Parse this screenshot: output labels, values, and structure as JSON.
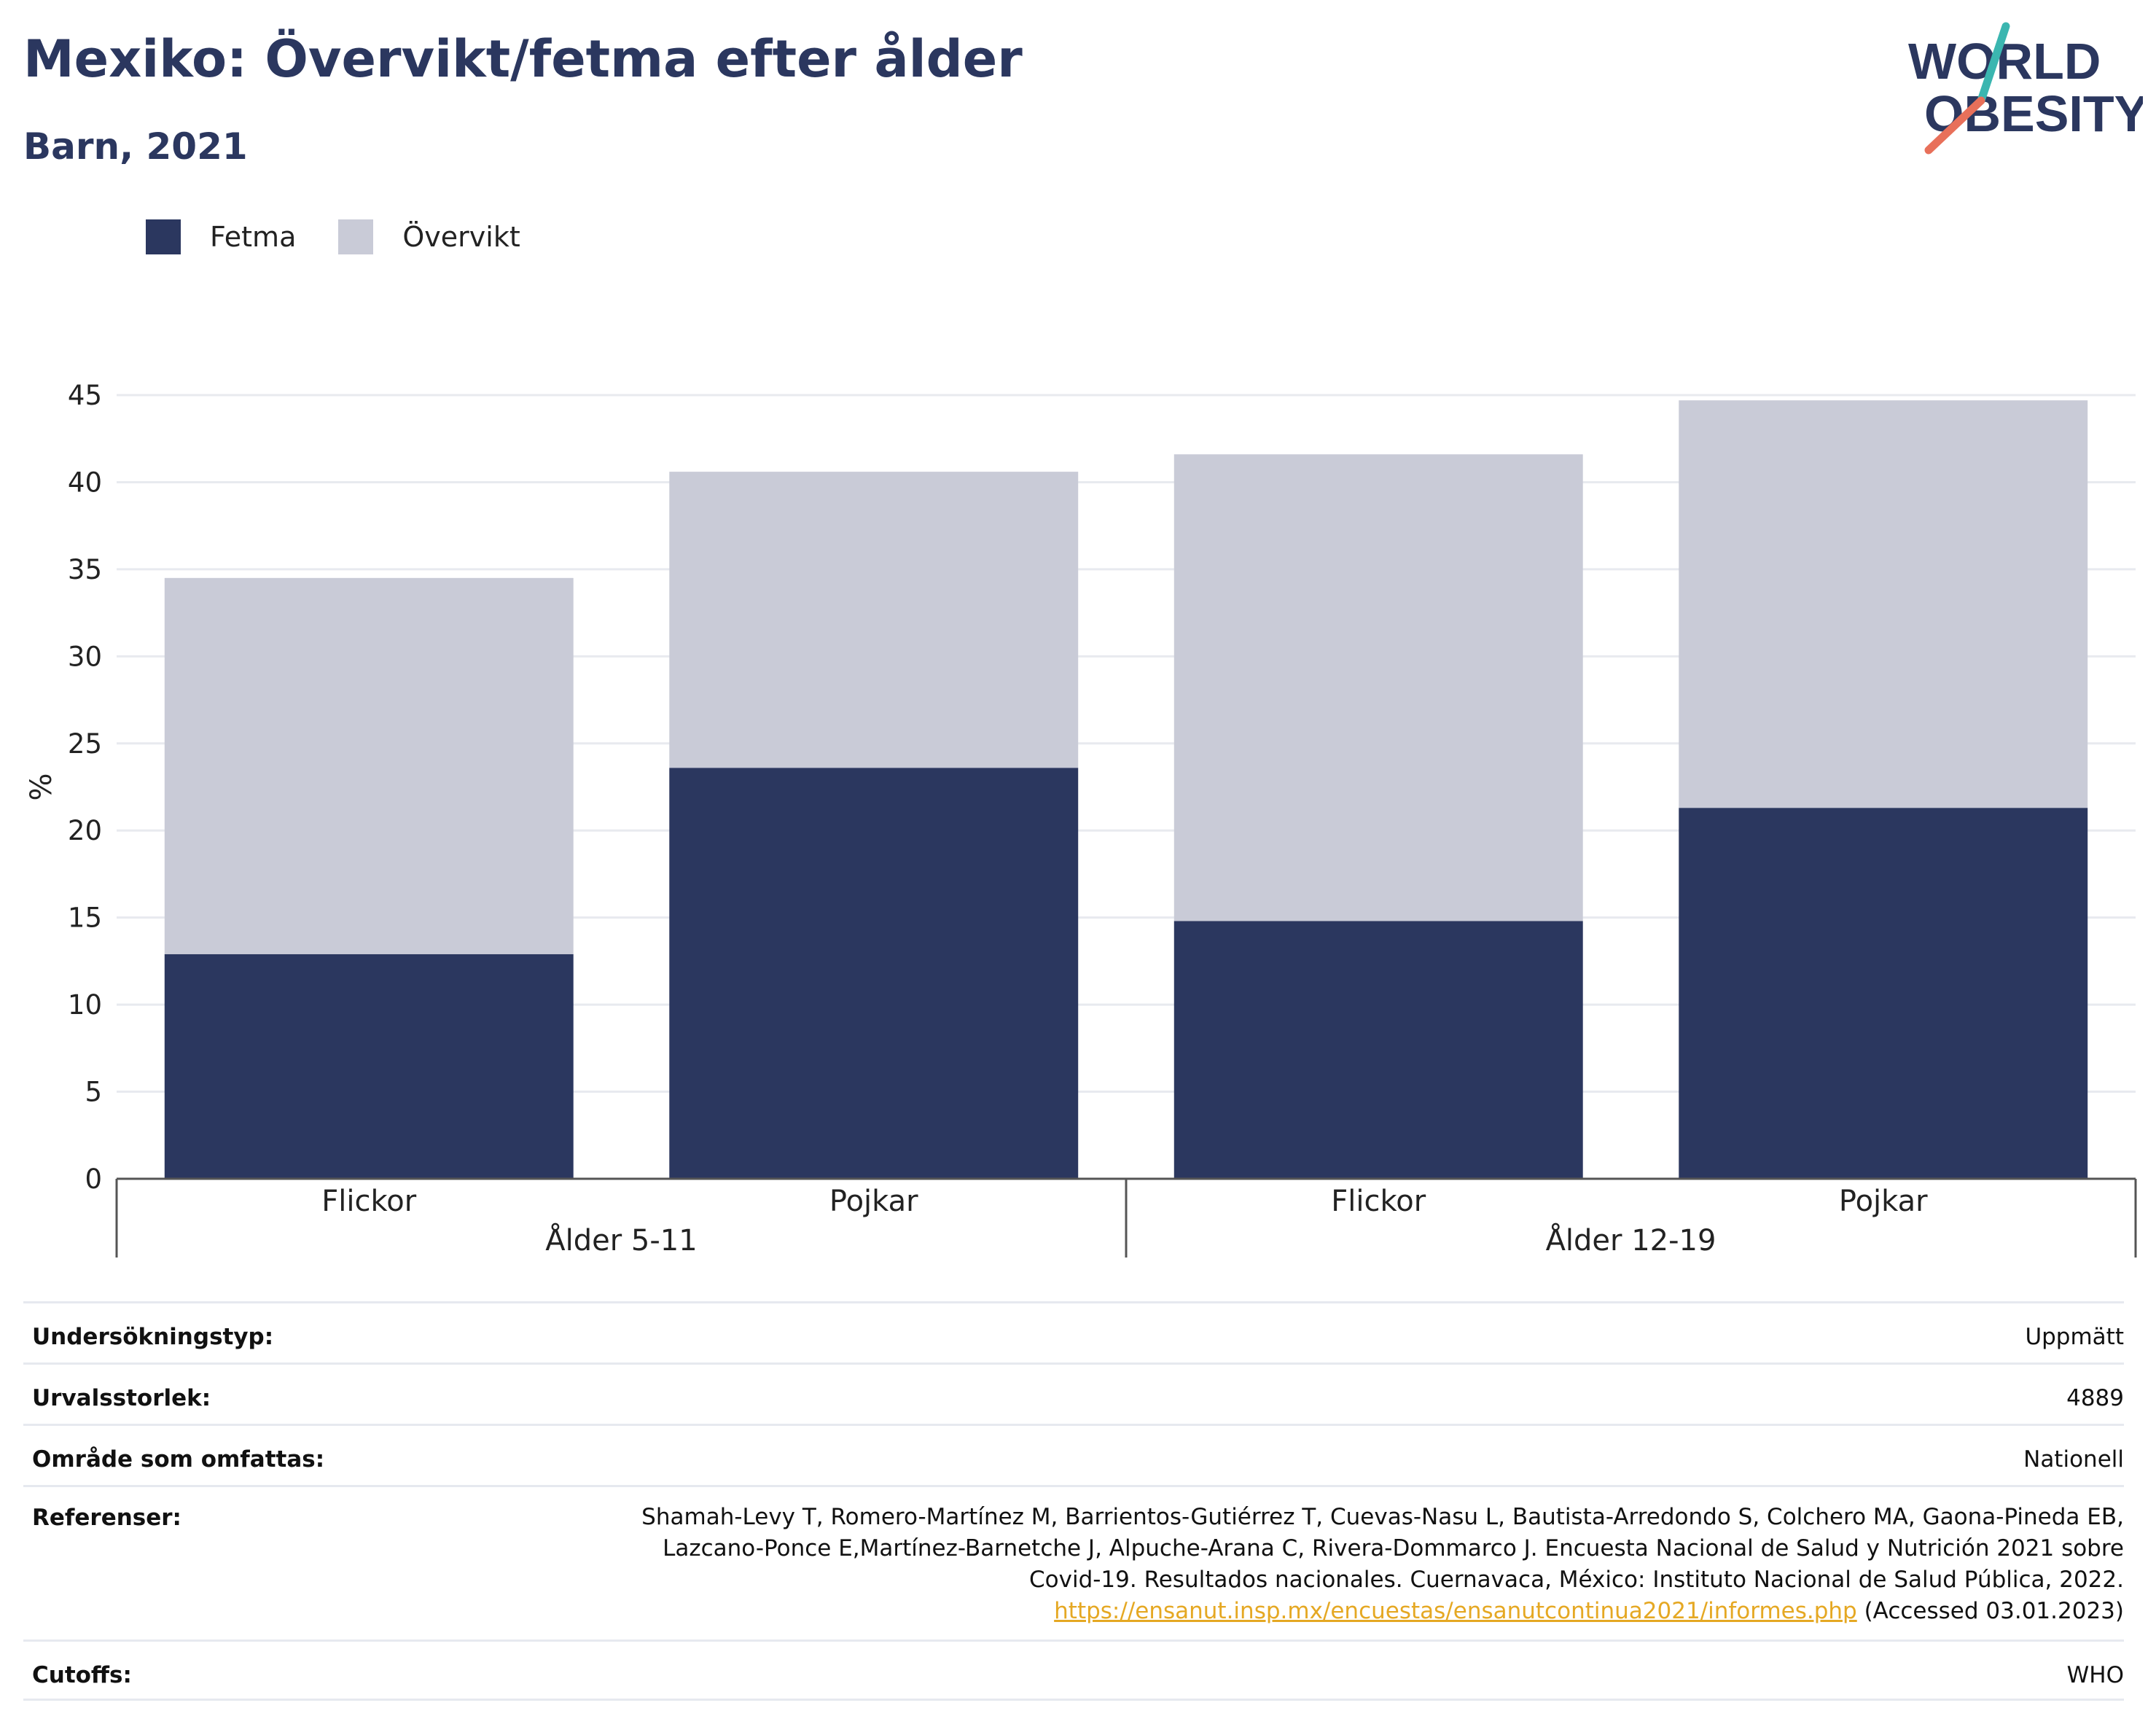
{
  "header": {
    "title": "Mexiko: Övervikt/fetma efter ålder",
    "subtitle": "Barn, 2021"
  },
  "logo": {
    "line1": "WORLD",
    "line2": "OBESITY",
    "colors": {
      "text": "#2b375f",
      "teal": "#3bb6b0",
      "coral": "#e8705a"
    }
  },
  "legend": {
    "items": [
      {
        "label": "Fetma",
        "color": "#2b375f"
      },
      {
        "label": "Övervikt",
        "color": "#c9cbd7"
      }
    ]
  },
  "chart_data": {
    "type": "bar",
    "stacked": true,
    "ylabel": "%",
    "ylim": [
      0,
      45
    ],
    "yticks": [
      0,
      5,
      10,
      15,
      20,
      25,
      30,
      35,
      40,
      45
    ],
    "grid": true,
    "groups": [
      {
        "label": "Ålder 5-11",
        "categories": [
          "Flickor",
          "Pojkar"
        ]
      },
      {
        "label": "Ålder 12-19",
        "categories": [
          "Flickor",
          "Pojkar"
        ]
      }
    ],
    "categories": [
      "Flickor",
      "Pojkar",
      "Flickor",
      "Pojkar"
    ],
    "series": [
      {
        "name": "Fetma",
        "color": "#2b375f",
        "values": [
          12.9,
          23.6,
          14.8,
          21.3
        ]
      },
      {
        "name": "Övervikt",
        "color": "#c9cbd7",
        "values": [
          21.6,
          17.0,
          26.8,
          23.4
        ]
      }
    ]
  },
  "meta": {
    "rows": [
      {
        "label": "Undersökningstyp:",
        "value": "Uppmätt"
      },
      {
        "label": "Urvalsstorlek:",
        "value": "4889"
      },
      {
        "label": "Område som omfattas:",
        "value": "Nationell"
      }
    ],
    "references": {
      "label": "Referenser:",
      "lines": [
        "Shamah-Levy T, Romero-Martínez M, Barrientos-Gutiérrez T, Cuevas-Nasu L, Bautista-Arredondo S, Colchero MA, Gaona-Pineda EB,",
        "Lazcano-Ponce E,Martínez-Barnetche J, Alpuche-Arana C, Rivera-Dommarco J. Encuesta Nacional de Salud y Nutrición 2021 sobre",
        "Covid-19. Resultados nacionales. Cuernavaca, México: Instituto Nacional de Salud Pública, 2022."
      ],
      "link": "https://ensanut.insp.mx/encuestas/ensanutcontinua2021/informes.php",
      "link_suffix": " (Accessed 03.01.2023)"
    },
    "cutoffs": {
      "label": "Cutoffs:",
      "value": "WHO"
    }
  }
}
